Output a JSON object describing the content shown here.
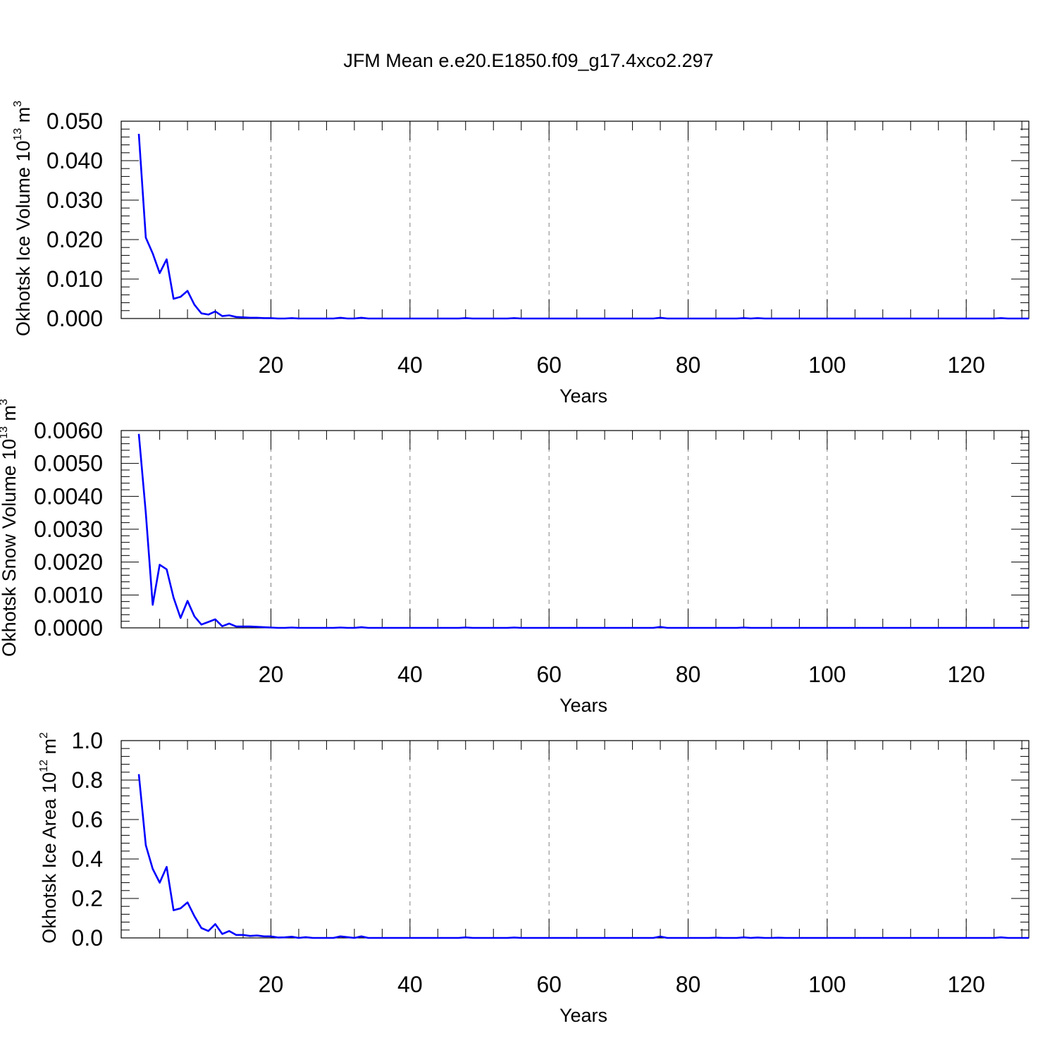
{
  "title": "JFM Mean e.e20.E1850.f09_g17.4xco2.297",
  "colors": {
    "line": "#0000ff",
    "axis": "#000000",
    "grid": "#808080",
    "background": "#ffffff"
  },
  "chart_data": [
    {
      "type": "line",
      "ylabel": {
        "text": "Okhotsk Ice Volume 10",
        "exponent": "13",
        "unit": "m",
        "unit_exponent": "3"
      },
      "xlabel": "Years",
      "xlim": [
        1,
        129
      ],
      "ylim": [
        0,
        0.05
      ],
      "x_ticks": [
        20,
        40,
        60,
        80,
        100,
        120
      ],
      "x_tick_labels": [
        "20",
        "40",
        "60",
        "80",
        "100",
        "120"
      ],
      "y_ticks": [
        0,
        0.01,
        0.02,
        0.03,
        0.04,
        0.05
      ],
      "y_tick_labels": [
        "0.000",
        "0.010",
        "0.020",
        "0.030",
        "0.040",
        "0.050"
      ],
      "grid": "vertical dashed at major x ticks",
      "start_x": 1,
      "values": [
        0.0468,
        0.0205,
        0.0165,
        0.0115,
        0.015,
        0.005,
        0.0055,
        0.007,
        0.0035,
        0.0013,
        0.001,
        0.0018,
        0.0006,
        0.0008,
        0.0004,
        0.0003,
        0.0002,
        0.0002,
        0.0001,
        0.0001,
        0.0,
        0.0,
        0.0001,
        0.0,
        0.0,
        0.0,
        0.0,
        0.0,
        0.0,
        0.0002,
        0.0,
        0.0,
        0.0002,
        0.0,
        0.0,
        0.0,
        0.0,
        0.0,
        0.0,
        0.0,
        0.0,
        0.0,
        0.0,
        0.0,
        0.0,
        0.0,
        0.0,
        0.0001,
        0.0,
        0.0,
        0.0,
        0.0,
        0.0,
        0.0,
        0.0001,
        0.0,
        0.0,
        0.0,
        0.0,
        0.0,
        0.0,
        0.0,
        0.0,
        0.0,
        0.0,
        0.0,
        0.0,
        0.0,
        0.0,
        0.0,
        0.0,
        0.0,
        0.0,
        0.0,
        0.0,
        0.0002,
        0.0,
        0.0,
        0.0,
        0.0,
        0.0,
        0.0,
        0.0,
        0.0,
        0.0,
        0.0,
        0.0,
        0.0001,
        0.0,
        0.0001,
        0.0,
        0.0,
        0.0,
        0.0,
        0.0,
        0.0,
        0.0,
        0.0,
        0.0,
        0.0,
        0.0,
        0.0,
        0.0,
        0.0,
        0.0,
        0.0,
        0.0,
        0.0,
        0.0,
        0.0,
        0.0,
        0.0,
        0.0,
        0.0,
        0.0,
        0.0,
        0.0,
        0.0,
        0.0,
        0.0,
        0.0,
        0.0,
        0.0,
        0.0,
        0.0001,
        0.0,
        0.0,
        0.0,
        0.0
      ]
    },
    {
      "type": "line",
      "ylabel": {
        "text": "Okhotsk Snow Volume 10",
        "exponent": "13",
        "unit": "m",
        "unit_exponent": "3"
      },
      "xlabel": "Years",
      "xlim": [
        1,
        129
      ],
      "ylim": [
        0,
        0.006
      ],
      "x_ticks": [
        20,
        40,
        60,
        80,
        100,
        120
      ],
      "x_tick_labels": [
        "20",
        "40",
        "60",
        "80",
        "100",
        "120"
      ],
      "y_ticks": [
        0,
        0.001,
        0.002,
        0.003,
        0.004,
        0.005,
        0.006
      ],
      "y_tick_labels": [
        "0.0000",
        "0.0010",
        "0.0020",
        "0.0030",
        "0.0040",
        "0.0050",
        "0.0060"
      ],
      "grid": "vertical dashed at major x ticks",
      "start_x": 1,
      "values": [
        0.0059,
        0.0035,
        0.0007,
        0.00192,
        0.00178,
        0.00092,
        0.0003,
        0.00082,
        0.00035,
        0.0001,
        0.00018,
        0.00026,
        5e-05,
        0.00013,
        4e-05,
        4e-05,
        4e-05,
        3e-05,
        2e-05,
        1e-05,
        0.0,
        0.0,
        1e-05,
        0.0,
        0.0,
        0.0,
        0.0,
        0.0,
        0.0,
        1e-05,
        0.0,
        0.0,
        2e-05,
        0.0,
        0.0,
        0.0,
        0.0,
        0.0,
        0.0,
        0.0,
        0.0,
        0.0,
        0.0,
        0.0,
        0.0,
        0.0,
        0.0,
        1e-05,
        0.0,
        0.0,
        0.0,
        0.0,
        0.0,
        0.0,
        1e-05,
        0.0,
        0.0,
        0.0,
        0.0,
        0.0,
        0.0,
        0.0,
        0.0,
        0.0,
        0.0,
        0.0,
        0.0,
        0.0,
        0.0,
        0.0,
        0.0,
        0.0,
        0.0,
        0.0,
        0.0,
        3e-05,
        0.0,
        0.0,
        0.0,
        0.0,
        0.0,
        0.0,
        0.0,
        0.0,
        0.0,
        0.0,
        0.0,
        1e-05,
        0.0,
        0.0,
        0.0,
        0.0,
        0.0,
        0.0,
        0.0,
        0.0,
        0.0,
        0.0,
        0.0,
        0.0,
        0.0,
        0.0,
        0.0,
        0.0,
        0.0,
        0.0,
        0.0,
        0.0,
        0.0,
        0.0,
        0.0,
        0.0,
        0.0,
        0.0,
        0.0,
        0.0,
        0.0,
        0.0,
        0.0,
        0.0,
        0.0,
        0.0,
        0.0,
        0.0,
        0.0,
        0.0,
        0.0,
        0.0,
        0.0
      ]
    },
    {
      "type": "line",
      "ylabel": {
        "text": "Okhotsk Ice Area 10",
        "exponent": "12",
        "unit": "m",
        "unit_exponent": "2"
      },
      "xlabel": "Years",
      "xlim": [
        1,
        129
      ],
      "ylim": [
        0,
        1.0
      ],
      "x_ticks": [
        20,
        40,
        60,
        80,
        100,
        120
      ],
      "x_tick_labels": [
        "20",
        "40",
        "60",
        "80",
        "100",
        "120"
      ],
      "y_ticks": [
        0,
        0.2,
        0.4,
        0.6,
        0.8,
        1.0
      ],
      "y_tick_labels": [
        "0.0",
        "0.2",
        "0.4",
        "0.6",
        "0.8",
        "1.0"
      ],
      "grid": "vertical dashed at major x ticks",
      "start_x": 1,
      "values": [
        0.83,
        0.47,
        0.35,
        0.28,
        0.36,
        0.14,
        0.15,
        0.18,
        0.11,
        0.05,
        0.035,
        0.07,
        0.02,
        0.035,
        0.015,
        0.015,
        0.01,
        0.012,
        0.008,
        0.008,
        0.002,
        0.003,
        0.006,
        0.0,
        0.004,
        0.0,
        0.0,
        0.0,
        0.0,
        0.008,
        0.004,
        0.0,
        0.008,
        0.0,
        0.0,
        0.0,
        0.0,
        0.0,
        0.0,
        0.0,
        0.0,
        0.0,
        0.0,
        0.0,
        0.0,
        0.0,
        0.0,
        0.003,
        0.0,
        0.0,
        0.0,
        0.0,
        0.0,
        0.0,
        0.002,
        0.0,
        0.0,
        0.0,
        0.0,
        0.0,
        0.0,
        0.0,
        0.0,
        0.0,
        0.0,
        0.0,
        0.0,
        0.0,
        0.0,
        0.0,
        0.0,
        0.0,
        0.0,
        0.0,
        0.0,
        0.007,
        0.0,
        0.0,
        0.0,
        0.0,
        0.0,
        0.0,
        0.0,
        0.001,
        0.0,
        0.0,
        0.0,
        0.003,
        0.0,
        0.002,
        0.0,
        0.0,
        0.001,
        0.0,
        0.0,
        0.0,
        0.0,
        0.0,
        0.0,
        0.0,
        0.0,
        0.0,
        0.0,
        0.0,
        0.0,
        0.0,
        0.0,
        0.0,
        0.0,
        0.0,
        0.0,
        0.0,
        0.0,
        0.0,
        0.0,
        0.0,
        0.0,
        0.0,
        0.0,
        0.0,
        0.0,
        0.0,
        0.0,
        0.0,
        0.003,
        0.0,
        0.0,
        0.0,
        0.0
      ]
    }
  ]
}
